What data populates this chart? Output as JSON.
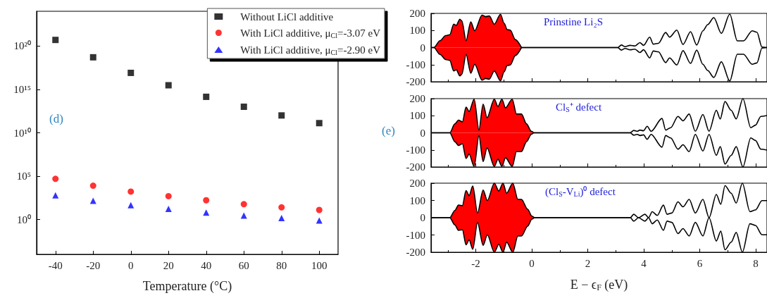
{
  "chart_data": [
    {
      "type": "scatter",
      "xlabel": "Temperature (°C)",
      "x": [
        -40,
        -20,
        0,
        20,
        40,
        60,
        80,
        100
      ],
      "xlim": [
        -50,
        110
      ],
      "xticks": [
        -40,
        -20,
        0,
        20,
        40,
        60,
        80,
        100
      ],
      "log": "y",
      "ylim": [
        0.0001,
        1e+24
      ],
      "yticks": [
        {
          "value": 1,
          "label": "10⁰"
        },
        {
          "value": 100000,
          "label": "10⁵"
        },
        {
          "value": 10000000000,
          "label": "10¹⁰"
        },
        {
          "value": 1000000000000000.0,
          "label": "10¹⁵"
        },
        {
          "value": 1e+20,
          "label": "10²⁰"
        }
      ],
      "grid": false,
      "legend": "top right",
      "annotations": [
        "(d)"
      ],
      "series": [
        {
          "name": "Without LiCl additive",
          "color": "#000000",
          "marker": "square",
          "values": [
            5e+20,
            5e+18,
            8e+16,
            3000000000000000.0,
            140000000000000.0,
            10000000000000.0,
            1000000000000.0,
            130000000000.0
          ]
        },
        {
          "name": "With LiCl additive, μ$_{Cl}$=-3.07 eV",
          "color": "#ff0000",
          "marker": "circle",
          "values": [
            50000,
            8000,
            1700,
            500,
            170,
            60,
            26,
            13
          ]
        },
        {
          "name": "With LiCl additive, μ$_{Cl}$=-2.90 eV",
          "color": "#0000ff",
          "marker": "triangle",
          "values": [
            640,
            150,
            45,
            17,
            6.5,
            2.9,
            1.5,
            0.8
          ]
        }
      ]
    },
    {
      "type": "area",
      "xlim": [
        -3.6,
        8.4
      ],
      "xticks": [
        -2,
        0,
        2,
        4,
        6,
        8
      ],
      "ylim": [
        -200,
        200
      ],
      "yticks": [
        -200,
        -100,
        0,
        100,
        200
      ],
      "tick_labels": "y",
      "annotations": [
        "Prinstine Li₂S"
      ],
      "series": [
        {
          "type": "area",
          "color": "#ff0000",
          "x": [
            -3.57,
            -3.5,
            -3.28,
            -3.08,
            -2.93,
            -2.79,
            -2.7,
            -2.57,
            -2.5,
            -2.35,
            -2.18,
            -2.04,
            -1.78,
            -1.65,
            -1.52,
            -1.34,
            -1.12,
            -0.99,
            -0.88,
            -0.77,
            -0.59,
            -0.37
          ],
          "values": [
            0,
            0,
            40,
            70,
            75,
            137,
            130,
            166,
            156,
            40,
            150,
            98,
            190,
            181,
            185,
            137,
            195,
            142,
            105,
            102,
            47,
            0
          ]
        },
        {
          "type": "area",
          "color": "#ff0000",
          "x": [
            -3.57,
            -3.5,
            -3.28,
            -3.08,
            -2.93,
            -2.79,
            -2.7,
            -2.57,
            -2.5,
            -2.35,
            -2.18,
            -2.04,
            -1.78,
            -1.65,
            -1.52,
            -1.34,
            -1.12,
            -0.99,
            -0.88,
            -0.77,
            -0.59,
            -0.37
          ],
          "values": [
            0,
            0,
            -40,
            -70,
            -75,
            -137,
            -130,
            -166,
            -156,
            -40,
            -150,
            -98,
            -190,
            -181,
            -185,
            -137,
            -195,
            -142,
            -105,
            -102,
            -47,
            0
          ]
        },
        {
          "type": "line",
          "color": "#000000",
          "x": [
            -0.37,
            3.07,
            3.2,
            3.33,
            3.51,
            3.68,
            3.86,
            3.99,
            4.21,
            4.34,
            4.52,
            4.78,
            4.92,
            5.18,
            5.4,
            5.67,
            5.89,
            6.11,
            6.28,
            6.5,
            6.77,
            7.07,
            7.34,
            7.56,
            7.87,
            8.04,
            8.22,
            8.4
          ],
          "values": [
            0,
            0,
            15,
            5,
            13,
            9,
            29,
            13,
            61,
            20,
            25,
            88,
            61,
            102,
            18,
            93,
            15,
            98,
            134,
            175,
            83,
            196,
            39,
            39,
            98,
            90,
            3,
            0
          ]
        },
        {
          "type": "line",
          "color": "#000000",
          "x": [
            -0.37,
            3.07,
            3.2,
            3.33,
            3.51,
            3.68,
            3.86,
            3.99,
            4.21,
            4.34,
            4.52,
            4.78,
            4.92,
            5.18,
            5.4,
            5.67,
            5.89,
            6.11,
            6.28,
            6.5,
            6.77,
            7.07,
            7.34,
            7.56,
            7.87,
            8.04,
            8.22,
            8.4
          ],
          "values": [
            0,
            0,
            -15,
            -5,
            -13,
            -9,
            -29,
            -13,
            -61,
            -20,
            -25,
            -88,
            -61,
            -102,
            -18,
            -93,
            -15,
            -98,
            -134,
            -175,
            -83,
            -196,
            -39,
            -39,
            -98,
            -90,
            -3,
            0
          ]
        }
      ]
    },
    {
      "type": "area",
      "xlim": [
        -3.6,
        8.4
      ],
      "xticks": [
        -2,
        0,
        2,
        4,
        6,
        8
      ],
      "ylim": [
        -200,
        200
      ],
      "yticks": [
        -200,
        -100,
        0,
        100,
        200
      ],
      "tick_labels": "y",
      "annotations": [
        "Cl$_{S}$⁺ defect",
        "(e)"
      ],
      "series": [
        {
          "type": "area",
          "color": "#ff0000",
          "x": [
            -3.57,
            -2.93,
            -2.75,
            -2.62,
            -2.48,
            -2.35,
            -2.24,
            -2.06,
            -1.89,
            -1.74,
            -1.6,
            -1.34,
            -1.21,
            -1.07,
            -0.94,
            -0.7,
            -0.55,
            -0.37,
            -0.19,
            -0.02,
            0.07
          ],
          "values": [
            0,
            0,
            52,
            74,
            64,
            150,
            125,
            197,
            16,
            168,
            88,
            197,
            154,
            197,
            146,
            197,
            110,
            110,
            52,
            9,
            0
          ]
        },
        {
          "type": "area",
          "color": "#ff0000",
          "x": [
            -3.57,
            -2.93,
            -2.75,
            -2.62,
            -2.48,
            -2.35,
            -2.24,
            -2.06,
            -1.89,
            -1.74,
            -1.6,
            -1.34,
            -1.21,
            -1.07,
            -0.94,
            -0.7,
            -0.55,
            -0.37,
            -0.19,
            -0.02,
            0.07
          ],
          "values": [
            0,
            0,
            -52,
            -74,
            -64,
            -150,
            -125,
            -197,
            -16,
            -168,
            -88,
            -197,
            -154,
            -197,
            -146,
            -197,
            -110,
            -110,
            -52,
            -9,
            0
          ]
        },
        {
          "type": "line",
          "color": "#000000",
          "x": [
            0.07,
            3.51,
            3.64,
            3.77,
            3.86,
            3.99,
            4.12,
            4.26,
            4.65,
            4.78,
            4.96,
            5.22,
            5.4,
            5.62,
            5.84,
            6.11,
            6.33,
            6.59,
            6.73,
            6.9,
            7.12,
            7.3,
            7.54,
            7.82,
            7.99,
            8.18,
            8.4
          ],
          "values": [
            0,
            0,
            14,
            9,
            16,
            12,
            38,
            9,
            84,
            16,
            30,
            96,
            70,
            110,
            9,
            107,
            9,
            132,
            81,
            183,
            132,
            81,
            200,
            30,
            45,
            96,
            101
          ]
        },
        {
          "type": "line",
          "color": "#000000",
          "x": [
            0.07,
            3.51,
            3.64,
            3.77,
            3.86,
            3.99,
            4.12,
            4.26,
            4.65,
            4.78,
            4.96,
            5.22,
            5.4,
            5.62,
            5.84,
            6.11,
            6.33,
            6.59,
            6.73,
            6.9,
            7.12,
            7.3,
            7.54,
            7.82,
            7.99,
            8.18,
            8.4
          ],
          "values": [
            0,
            0,
            -14,
            -9,
            -16,
            -12,
            -38,
            -9,
            -84,
            -16,
            -30,
            -96,
            -70,
            -110,
            -9,
            -107,
            -9,
            -132,
            -81,
            -183,
            -132,
            -81,
            -200,
            -30,
            -45,
            -96,
            -101
          ]
        }
      ]
    },
    {
      "type": "area",
      "xlim": [
        -3.6,
        8.4
      ],
      "xticks": [
        -2,
        0,
        2,
        4,
        6,
        8
      ],
      "ylim": [
        -200,
        200
      ],
      "yticks": [
        -200,
        -100,
        0,
        100,
        200
      ],
      "xlabel": "E − ϵ$_{F}$ (eV)",
      "annotations": [
        "(Cl$_{S}$-V$_{Li}$)⁰ defect"
      ],
      "series": [
        {
          "type": "area",
          "color": "#ff0000",
          "x": [
            -3.57,
            -2.93,
            -2.75,
            -2.62,
            -2.48,
            -2.35,
            -2.24,
            -2.11,
            -1.94,
            -1.74,
            -1.59,
            -1.34,
            -1.18,
            -1.03,
            -0.9,
            -0.68,
            -0.5,
            -0.37,
            -0.15,
            0,
            0.09
          ],
          "values": [
            0,
            0,
            42,
            73,
            70,
            157,
            128,
            183,
            27,
            160,
            99,
            200,
            154,
            200,
            142,
            200,
            106,
            106,
            49,
            9,
            0
          ]
        },
        {
          "type": "area",
          "color": "#ff0000",
          "x": [
            -3.57,
            -2.93,
            -2.75,
            -2.62,
            -2.48,
            -2.35,
            -2.24,
            -2.11,
            -1.94,
            -1.74,
            -1.59,
            -1.34,
            -1.18,
            -1.03,
            -0.9,
            -0.68,
            -0.5,
            -0.37,
            -0.15,
            0,
            0.09
          ],
          "values": [
            0,
            0,
            -42,
            -73,
            -70,
            -157,
            -128,
            -183,
            -27,
            -160,
            -99,
            -200,
            -154,
            -200,
            -142,
            -200,
            -106,
            -106,
            -49,
            -9,
            0
          ]
        },
        {
          "type": "line",
          "color": "#000000",
          "x": [
            0.09,
            3.52,
            3.64,
            3.81,
            4.04,
            4.17,
            4.3,
            4.48,
            4.7,
            4.83,
            5,
            5.22,
            5.4,
            5.62,
            5.84,
            6.11,
            6.33,
            6.59,
            6.75,
            6.9,
            7.12,
            7.3,
            7.52,
            7.79,
            7.99,
            8.22,
            8.4
          ],
          "values": [
            0,
            0,
            20,
            0,
            20,
            0,
            35,
            13,
            73,
            20,
            27,
            92,
            63,
            106,
            27,
            106,
            0,
            135,
            78,
            186,
            142,
            85,
            200,
            35,
            45,
            99,
            99
          ]
        },
        {
          "type": "line",
          "color": "#000000",
          "x": [
            0.09,
            3.52,
            3.64,
            3.81,
            4.04,
            4.17,
            4.3,
            4.48,
            4.7,
            4.83,
            5,
            5.22,
            5.4,
            5.62,
            5.84,
            6.11,
            6.33,
            6.59,
            6.75,
            6.9,
            7.12,
            7.3,
            7.52,
            7.79,
            7.99,
            8.22,
            8.4
          ],
          "values": [
            0,
            0,
            -20,
            0,
            -20,
            0,
            -35,
            -13,
            -73,
            -20,
            -27,
            -92,
            -63,
            -106,
            -27,
            -106,
            0,
            -135,
            -78,
            -186,
            -142,
            -85,
            -200,
            -35,
            -45,
            -99,
            -99
          ]
        }
      ]
    }
  ]
}
